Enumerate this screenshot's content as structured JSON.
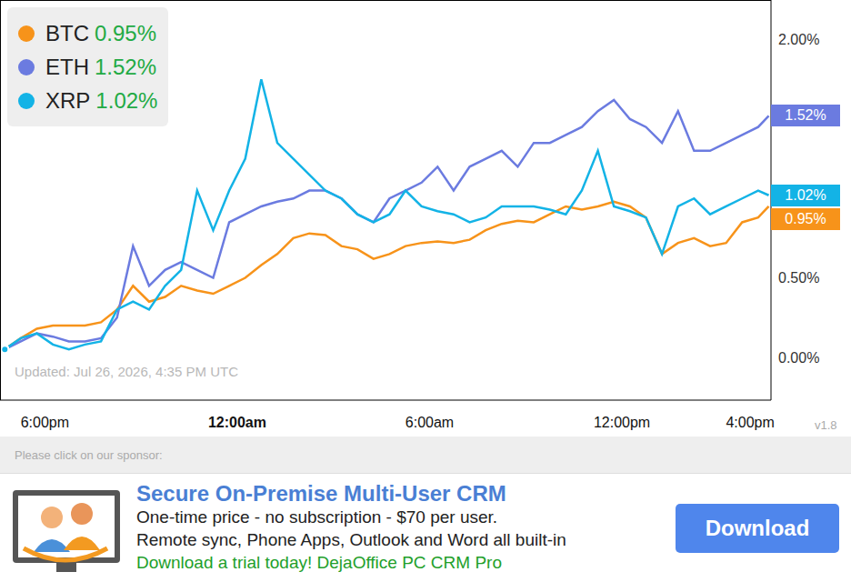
{
  "chart_data": {
    "type": "line",
    "x": [
      16.75,
      17.25,
      17.75,
      18.25,
      18.75,
      19.25,
      19.75,
      20.25,
      20.75,
      21.25,
      21.75,
      22.25,
      22.75,
      23.25,
      23.75,
      24.25,
      24.75,
      25.25,
      25.75,
      26.25,
      26.75,
      27.25,
      27.75,
      28.25,
      28.75,
      29.25,
      29.75,
      30.25,
      30.75,
      31.25,
      31.75,
      32.25,
      32.75,
      33.25,
      33.75,
      34.25,
      34.75,
      35.25,
      35.75,
      36.25,
      36.75,
      37.25,
      37.75,
      38.25,
      38.75,
      39.25,
      39.75,
      40.25,
      40.58
    ],
    "series": [
      {
        "name": "BTC",
        "color": "#f7931a",
        "end_label": "0.95%",
        "values": [
          0.05,
          0.12,
          0.18,
          0.2,
          0.2,
          0.2,
          0.22,
          0.3,
          0.45,
          0.35,
          0.38,
          0.45,
          0.42,
          0.4,
          0.45,
          0.5,
          0.58,
          0.65,
          0.75,
          0.78,
          0.77,
          0.7,
          0.68,
          0.62,
          0.65,
          0.7,
          0.72,
          0.73,
          0.72,
          0.74,
          0.8,
          0.84,
          0.86,
          0.85,
          0.9,
          0.95,
          0.93,
          0.95,
          0.98,
          0.95,
          0.88,
          0.65,
          0.72,
          0.75,
          0.7,
          0.72,
          0.85,
          0.88,
          0.95
        ]
      },
      {
        "name": "ETH",
        "color": "#6b7be0",
        "end_label": "1.52%",
        "values": [
          0.05,
          0.1,
          0.15,
          0.13,
          0.1,
          0.1,
          0.12,
          0.25,
          0.7,
          0.45,
          0.55,
          0.6,
          0.55,
          0.5,
          0.85,
          0.9,
          0.95,
          0.98,
          1.0,
          1.05,
          1.05,
          1.0,
          0.9,
          0.85,
          1.0,
          1.05,
          1.1,
          1.2,
          1.05,
          1.2,
          1.25,
          1.3,
          1.2,
          1.35,
          1.35,
          1.4,
          1.45,
          1.55,
          1.62,
          1.5,
          1.45,
          1.35,
          1.55,
          1.3,
          1.3,
          1.35,
          1.4,
          1.45,
          1.52
        ]
      },
      {
        "name": "XRP",
        "color": "#13b3e6",
        "end_label": "1.02%",
        "values": [
          0.05,
          0.12,
          0.15,
          0.08,
          0.05,
          0.08,
          0.1,
          0.3,
          0.35,
          0.3,
          0.45,
          0.55,
          1.05,
          0.8,
          1.05,
          1.25,
          1.75,
          1.35,
          1.25,
          1.15,
          1.05,
          1.0,
          0.9,
          0.85,
          0.9,
          1.05,
          0.95,
          0.92,
          0.9,
          0.85,
          0.88,
          0.95,
          0.95,
          0.95,
          0.93,
          0.9,
          1.05,
          1.3,
          0.95,
          0.92,
          0.88,
          0.65,
          0.95,
          1.0,
          0.9,
          0.95,
          1.0,
          1.05,
          1.02
        ]
      }
    ],
    "xlim": [
      16.6,
      40.65
    ],
    "xticks": [
      {
        "value": 18,
        "label": "6:00pm"
      },
      {
        "value": 24,
        "label": "12:00am"
      },
      {
        "value": 30,
        "label": "6:00am"
      },
      {
        "value": 36,
        "label": "12:00pm"
      },
      {
        "value": 40,
        "label": "4:00pm"
      }
    ],
    "ylim": [
      -0.27,
      2.25
    ],
    "yticks": [
      {
        "value": 0,
        "label": "0.00%"
      },
      {
        "value": 0.5,
        "label": "0.50%"
      },
      {
        "value": 2,
        "label": "2.00%"
      }
    ],
    "grid": false,
    "legend": "top-left",
    "updated": "Updated: Jul 26, 2026, 4:35 PM UTC"
  },
  "version": "v1.8",
  "sponsor": {
    "prompt": "Please click on our sponsor:",
    "title": "Secure On-Premise Multi-User CRM",
    "lines": [
      "One-time price - no subscription - $70 per user.",
      "Remote sync, Phone Apps, Outlook and Word all built-in"
    ],
    "call": "Download a trial today! DejaOffice PC CRM Pro",
    "button": "Download"
  }
}
